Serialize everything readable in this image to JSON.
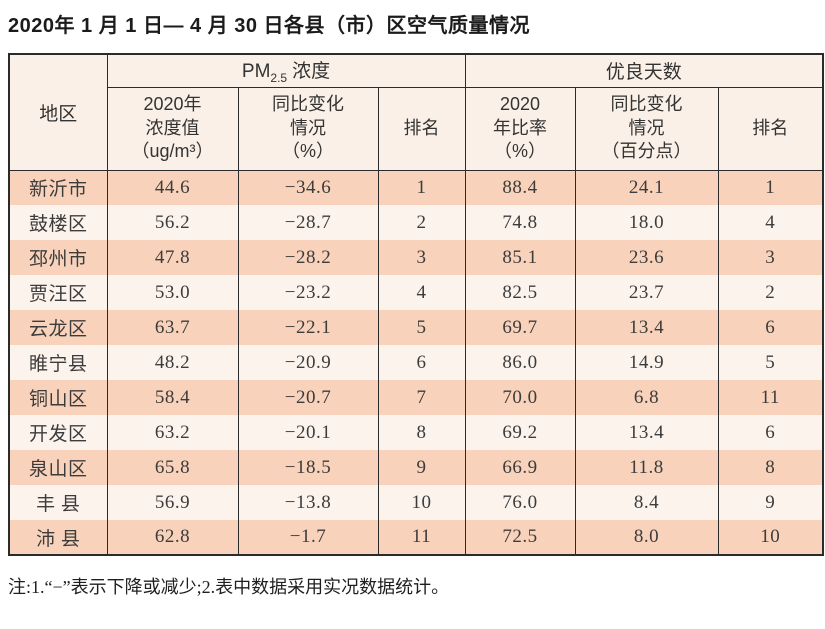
{
  "page": {
    "title": "2020年 1 月 1 日— 4 月 30 日各县（市）区空气质量情况",
    "note": "注:1.“−”表示下降或减少;2.表中数据采用实况数据统计。"
  },
  "table": {
    "header": {
      "region": "地区",
      "pm_group": {
        "prefix": "PM",
        "sub": "2.5",
        "suffix": "浓度"
      },
      "good_days_group": "优良天数",
      "sub_headers": {
        "pm_value": "2020年\n浓度值\n（ug/m³）",
        "pm_change": "同比变化\n情况\n（%）",
        "pm_rank": "排名",
        "good_rate": "2020\n年比率\n（%）",
        "good_change": "同比变化\n情况\n（百分点）",
        "good_rank": "排名"
      }
    },
    "rows": [
      [
        "新沂市",
        "44.6",
        "−34.6",
        "1",
        "88.4",
        "24.1",
        "1"
      ],
      [
        "鼓楼区",
        "56.2",
        "−28.7",
        "2",
        "74.8",
        "18.0",
        "4"
      ],
      [
        "邳州市",
        "47.8",
        "−28.2",
        "3",
        "85.1",
        "23.6",
        "3"
      ],
      [
        "贾汪区",
        "53.0",
        "−23.2",
        "4",
        "82.5",
        "23.7",
        "2"
      ],
      [
        "云龙区",
        "63.7",
        "−22.1",
        "5",
        "69.7",
        "13.4",
        "6"
      ],
      [
        "睢宁县",
        "48.2",
        "−20.9",
        "6",
        "86.0",
        "14.9",
        "5"
      ],
      [
        "铜山区",
        "58.4",
        "−20.7",
        "7",
        "70.0",
        "6.8",
        "11"
      ],
      [
        "开发区",
        "63.2",
        "−20.1",
        "8",
        "69.2",
        "13.4",
        "6"
      ],
      [
        "泉山区",
        "65.8",
        "−18.5",
        "9",
        "66.9",
        "11.8",
        "8"
      ],
      [
        "丰 县",
        "56.9",
        "−13.8",
        "10",
        "76.0",
        "8.4",
        "9"
      ],
      [
        "沛 县",
        "62.8",
        "−1.7",
        "11",
        "72.5",
        "8.0",
        "10"
      ]
    ]
  },
  "colors": {
    "row_odd": "#f8d2ba",
    "row_even": "#fcf3ec",
    "header_bg": "#fbf0e7",
    "border": "#2b2b2b",
    "text": "#3f3f3f"
  }
}
